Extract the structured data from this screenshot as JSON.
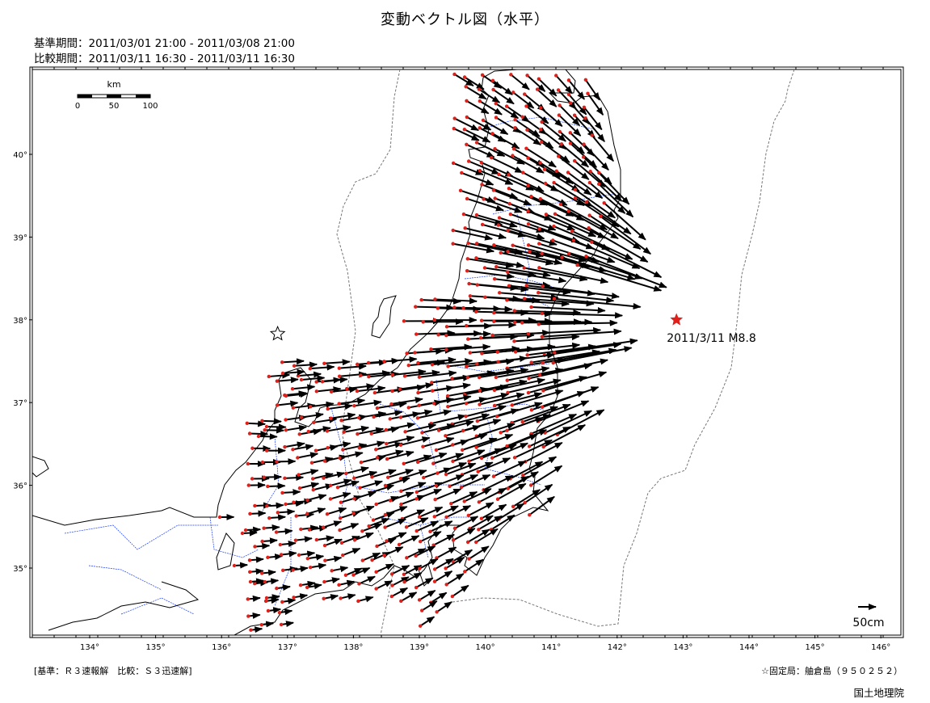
{
  "title": "変動ベクトル図（水平）",
  "periods": {
    "base": "基準期間：2011/03/01 21:00 - 2011/03/08 21:00",
    "compare": "比較期間：2011/03/11 16:30 - 2011/03/11 16:30"
  },
  "scalebar": {
    "unit": "km",
    "ticks": [
      "0",
      "50",
      "100"
    ]
  },
  "lon_labels": [
    "134°",
    "135°",
    "136°",
    "137°",
    "138°",
    "139°",
    "140°",
    "141°",
    "142°",
    "143°",
    "144°",
    "145°",
    "146°"
  ],
  "lat_labels": [
    "40°",
    "39°",
    "38°",
    "37°",
    "36°",
    "35°"
  ],
  "epicenter": {
    "label": "2011/3/11 M8.8",
    "lon": 142.9,
    "lat": 38.0,
    "color": "#e0201a"
  },
  "fixed_station_marker": {
    "lon": 136.9,
    "lat": 37.85
  },
  "vector_scale": {
    "label": "50cm"
  },
  "footer": {
    "solution": "[基準：Ｒ３速報解　比較：Ｓ３迅速解]",
    "fixed_station": "☆固定局：舳倉島（９５０２５２）",
    "agency": "国土地理院"
  },
  "colors": {
    "station": "#e0201a",
    "vector": "#000000",
    "prefecture_border": "#1a3cff",
    "trench": "#777777",
    "coast": "#000000"
  }
}
